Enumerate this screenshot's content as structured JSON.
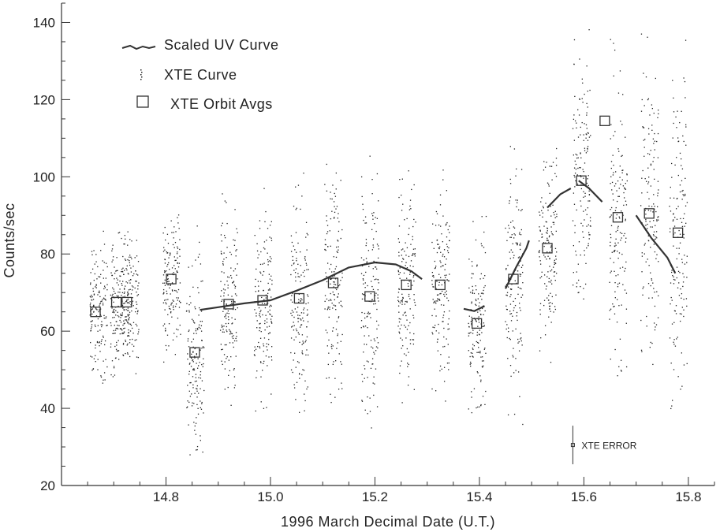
{
  "chart_data": {
    "type": "scatter",
    "title": "",
    "xlabel": "1996 March Decimal Date (U.T.)",
    "ylabel": "Counts/sec",
    "xlim": [
      14.6,
      15.85
    ],
    "ylim": [
      20,
      145
    ],
    "x_ticks": [
      14.8,
      15.0,
      15.2,
      15.4,
      15.6,
      15.8
    ],
    "x_tick_labels": [
      "14.8",
      "15.0",
      "15.2",
      "15.4",
      "15.6",
      "15.8"
    ],
    "y_ticks": [
      20,
      40,
      60,
      80,
      100,
      120,
      140
    ],
    "y_tick_labels": [
      "20",
      "40",
      "60",
      "80",
      "100",
      "120",
      "140"
    ],
    "grid": false,
    "legend_placement": "top-left",
    "legend": [
      {
        "label": "Scaled UV Curve",
        "marker": "line"
      },
      {
        "label": "XTE Curve",
        "marker": "dots"
      },
      {
        "label": "XTE Orbit Avgs",
        "marker": "square"
      }
    ],
    "series": [
      {
        "name": "Scaled UV Curve",
        "kind": "line",
        "segments": [
          [
            [
              14.865,
              65.5
            ],
            [
              14.9,
              66.2
            ],
            [
              14.95,
              67.2
            ],
            [
              15.0,
              68.0
            ],
            [
              15.05,
              70.5
            ],
            [
              15.1,
              73.2
            ],
            [
              15.15,
              76.5
            ],
            [
              15.2,
              77.8
            ],
            [
              15.24,
              77.3
            ],
            [
              15.27,
              75.5
            ],
            [
              15.29,
              73.5
            ]
          ],
          [
            [
              15.37,
              65.8
            ],
            [
              15.39,
              65.2
            ],
            [
              15.41,
              66.5
            ]
          ],
          [
            [
              15.45,
              71.0
            ],
            [
              15.47,
              76.5
            ],
            [
              15.49,
              81.5
            ],
            [
              15.495,
              83.5
            ]
          ],
          [
            [
              15.53,
              92.0
            ],
            [
              15.555,
              95.5
            ],
            [
              15.575,
              97.0
            ]
          ],
          [
            [
              15.59,
              99.0
            ],
            [
              15.61,
              97.0
            ],
            [
              15.635,
              93.5
            ]
          ],
          [
            [
              15.7,
              90.0
            ],
            [
              15.73,
              84.0
            ],
            [
              15.76,
              79.0
            ],
            [
              15.775,
              75.0
            ]
          ]
        ]
      },
      {
        "name": "XTE Curve",
        "kind": "scatter-bands",
        "bands": [
          {
            "x_center": 14.67,
            "y_min": 44,
            "y_max": 92,
            "y_center": 65
          },
          {
            "x_center": 14.71,
            "y_min": 47,
            "y_max": 89,
            "y_center": 67.5
          },
          {
            "x_center": 14.73,
            "y_min": 46,
            "y_max": 85,
            "y_center": 67.5
          },
          {
            "x_center": 14.81,
            "y_min": 52,
            "y_max": 91,
            "y_center": 73
          },
          {
            "x_center": 14.855,
            "y_min": 27,
            "y_max": 92,
            "y_center": 54
          },
          {
            "x_center": 14.92,
            "y_min": 40,
            "y_max": 100,
            "y_center": 67
          },
          {
            "x_center": 14.985,
            "y_min": 39,
            "y_max": 99,
            "y_center": 67.5
          },
          {
            "x_center": 15.055,
            "y_min": 37,
            "y_max": 102,
            "y_center": 68
          },
          {
            "x_center": 15.12,
            "y_min": 35,
            "y_max": 105,
            "y_center": 72.5
          },
          {
            "x_center": 15.19,
            "y_min": 35,
            "y_max": 112,
            "y_center": 69
          },
          {
            "x_center": 15.26,
            "y_min": 36,
            "y_max": 102,
            "y_center": 72
          },
          {
            "x_center": 15.325,
            "y_min": 42,
            "y_max": 104,
            "y_center": 72
          },
          {
            "x_center": 15.395,
            "y_min": 39,
            "y_max": 97,
            "y_center": 62
          },
          {
            "x_center": 15.465,
            "y_min": 33,
            "y_max": 108,
            "y_center": 73.5
          },
          {
            "x_center": 15.53,
            "y_min": 50,
            "y_max": 108,
            "y_center": 81
          },
          {
            "x_center": 15.595,
            "y_min": 58,
            "y_max": 139,
            "y_center": 99
          },
          {
            "x_center": 15.665,
            "y_min": 48,
            "y_max": 141,
            "y_center": 89
          },
          {
            "x_center": 15.725,
            "y_min": 49,
            "y_max": 143,
            "y_center": 90.5
          },
          {
            "x_center": 15.78,
            "y_min": 40,
            "y_max": 140,
            "y_center": 85.5
          }
        ]
      },
      {
        "name": "XTE Orbit Avgs",
        "kind": "square-markers",
        "points": [
          [
            14.665,
            65
          ],
          [
            14.705,
            67.5
          ],
          [
            14.725,
            67.5
          ],
          [
            14.81,
            73.5
          ],
          [
            14.855,
            54.5
          ],
          [
            14.92,
            67
          ],
          [
            14.985,
            68
          ],
          [
            15.055,
            68.5
          ],
          [
            15.12,
            72.5
          ],
          [
            15.19,
            69
          ],
          [
            15.26,
            72
          ],
          [
            15.325,
            72
          ],
          [
            15.395,
            62
          ],
          [
            15.465,
            73.5
          ],
          [
            15.53,
            81.5
          ],
          [
            15.595,
            99
          ],
          [
            15.64,
            114.5
          ],
          [
            15.665,
            89.5
          ],
          [
            15.725,
            90.5
          ],
          [
            15.78,
            85.5
          ]
        ]
      }
    ],
    "annotations": [
      {
        "text": "XTE ERROR",
        "x": 15.6,
        "y": 30.5,
        "y_err": 5
      }
    ]
  }
}
